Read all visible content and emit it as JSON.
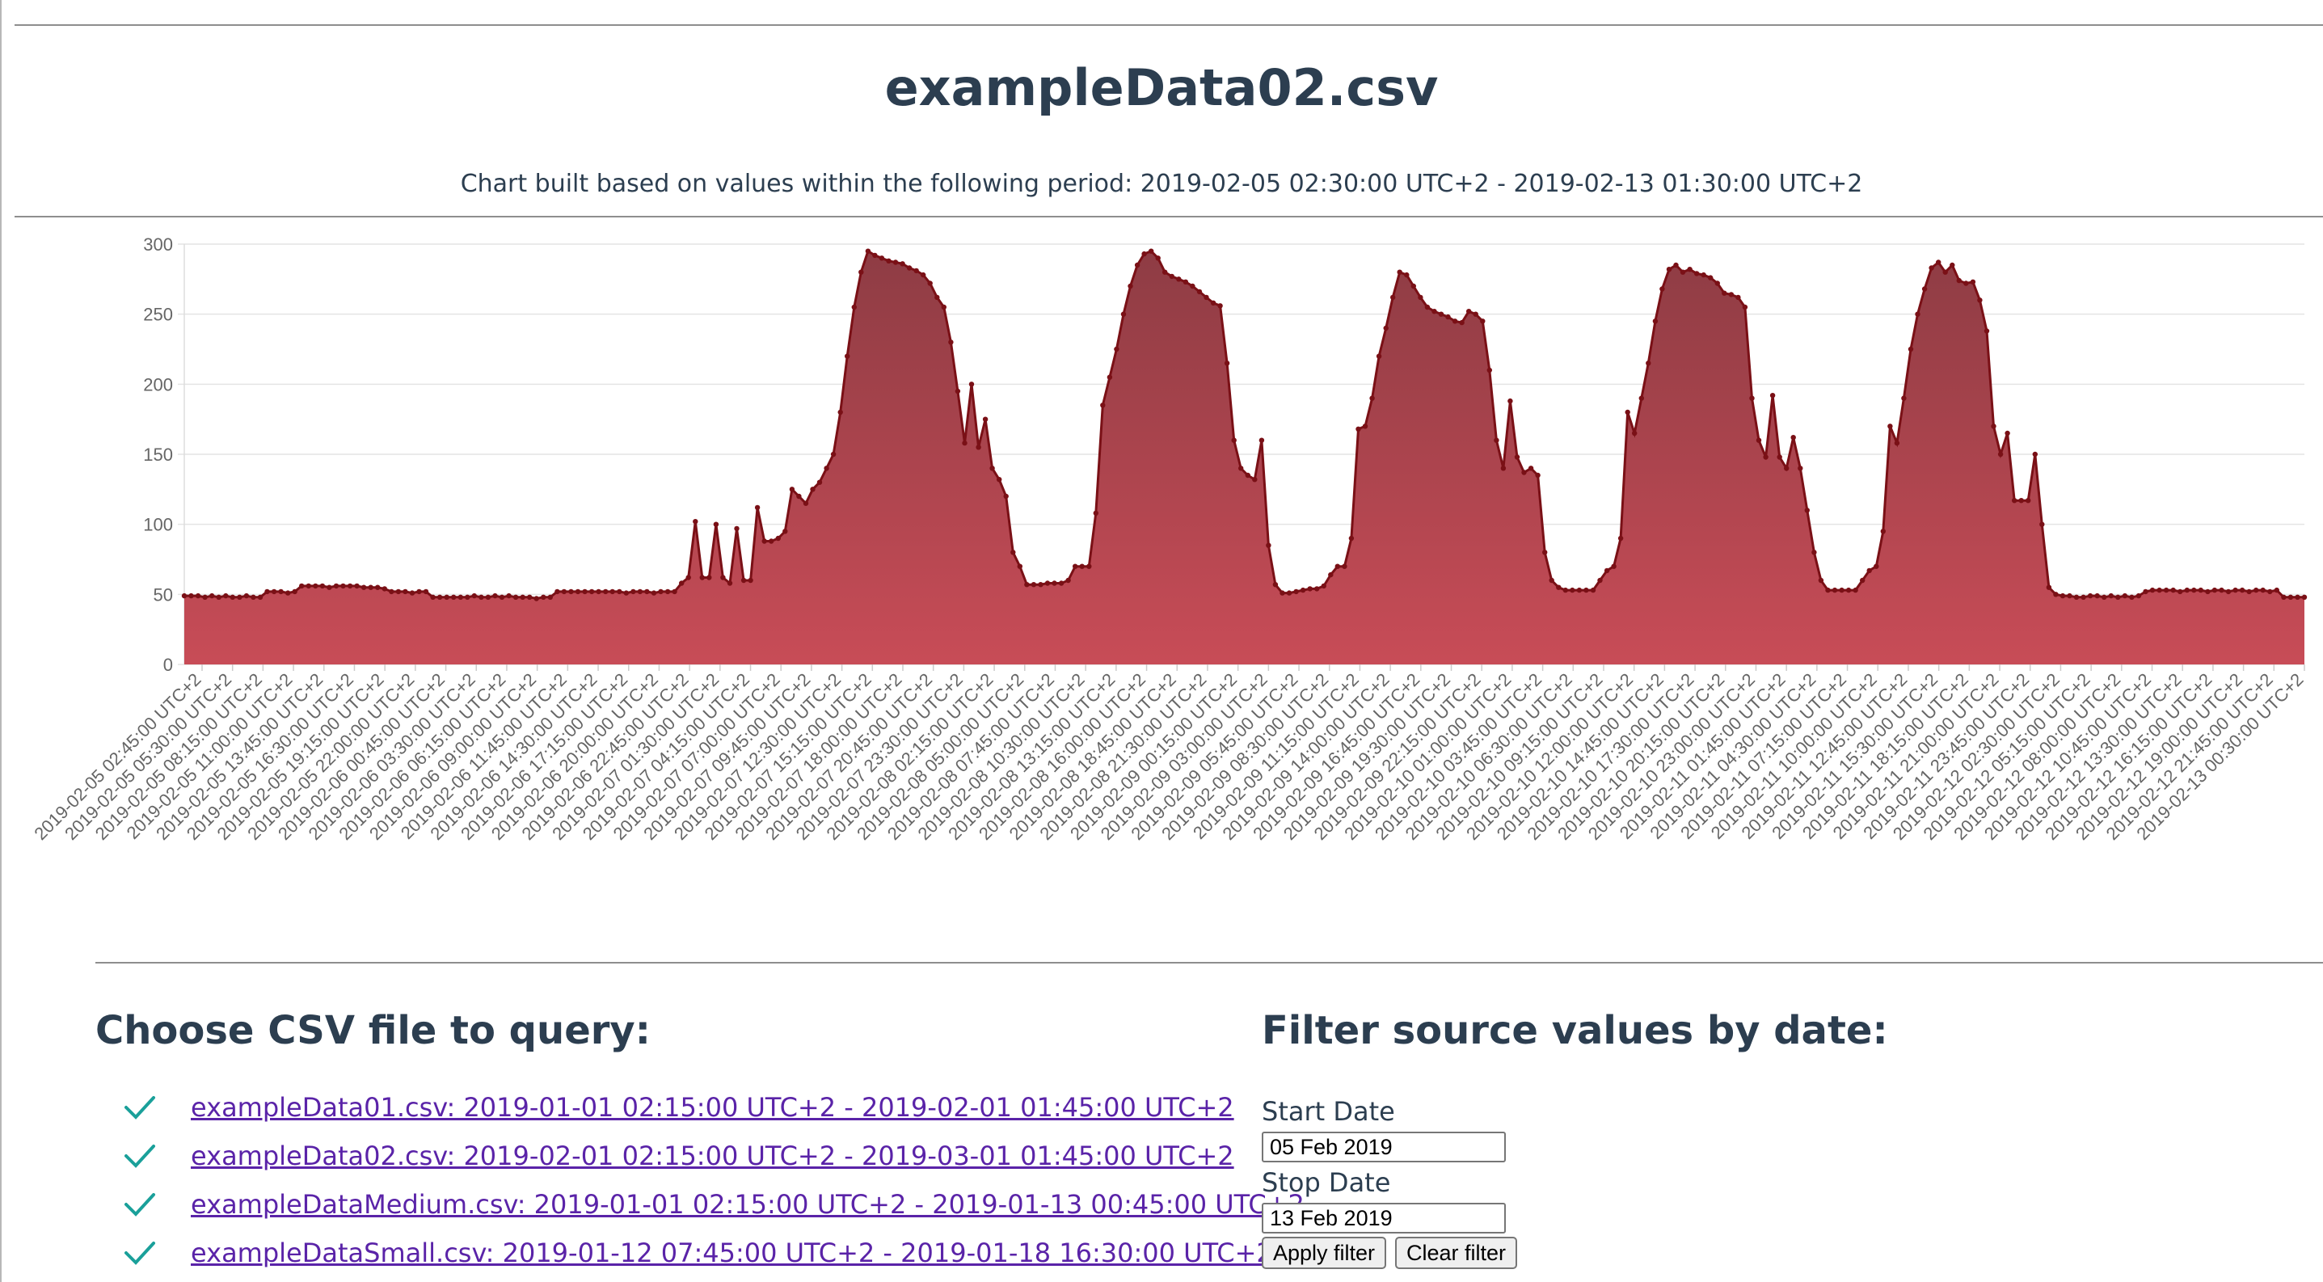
{
  "page": {
    "title": "exampleData02.csv",
    "period_text": "Chart built based on values within the following period: 2019-02-05 02:30:00 UTC+2 - 2019-02-13 01:30:00 UTC+2"
  },
  "chart_data": {
    "type": "area",
    "ylim": [
      0,
      300
    ],
    "y_ticks": [
      0,
      50,
      100,
      150,
      200,
      250,
      300
    ],
    "grid": true,
    "legend": "none",
    "fill_top_color": "#8e3c44",
    "fill_bottom_color": "#c84c57",
    "line_color": "#7a1016",
    "x_tick_labels": [
      "2019-02-05 02:45:00 UTC+2",
      "2019-02-05 05:30:00 UTC+2",
      "2019-02-05 08:15:00 UTC+2",
      "2019-02-05 11:00:00 UTC+2",
      "2019-02-05 13:45:00 UTC+2",
      "2019-02-05 16:30:00 UTC+2",
      "2019-02-05 19:15:00 UTC+2",
      "2019-02-05 22:00:00 UTC+2",
      "2019-02-06 00:45:00 UTC+2",
      "2019-02-06 03:30:00 UTC+2",
      "2019-02-06 06:15:00 UTC+2",
      "2019-02-06 09:00:00 UTC+2",
      "2019-02-06 11:45:00 UTC+2",
      "2019-02-06 14:30:00 UTC+2",
      "2019-02-06 17:15:00 UTC+2",
      "2019-02-06 20:00:00 UTC+2",
      "2019-02-06 22:45:00 UTC+2",
      "2019-02-07 01:30:00 UTC+2",
      "2019-02-07 04:15:00 UTC+2",
      "2019-02-07 07:00:00 UTC+2",
      "2019-02-07 09:45:00 UTC+2",
      "2019-02-07 12:30:00 UTC+2",
      "2019-02-07 15:15:00 UTC+2",
      "2019-02-07 18:00:00 UTC+2",
      "2019-02-07 20:45:00 UTC+2",
      "2019-02-07 23:30:00 UTC+2",
      "2019-02-08 02:15:00 UTC+2",
      "2019-02-08 05:00:00 UTC+2",
      "2019-02-08 07:45:00 UTC+2",
      "2019-02-08 10:30:00 UTC+2",
      "2019-02-08 13:15:00 UTC+2",
      "2019-02-08 16:00:00 UTC+2",
      "2019-02-08 18:45:00 UTC+2",
      "2019-02-08 21:30:00 UTC+2",
      "2019-02-09 00:15:00 UTC+2",
      "2019-02-09 03:00:00 UTC+2",
      "2019-02-09 05:45:00 UTC+2",
      "2019-02-09 08:30:00 UTC+2",
      "2019-02-09 11:15:00 UTC+2",
      "2019-02-09 14:00:00 UTC+2",
      "2019-02-09 16:45:00 UTC+2",
      "2019-02-09 19:30:00 UTC+2",
      "2019-02-09 22:15:00 UTC+2",
      "2019-02-10 01:00:00 UTC+2",
      "2019-02-10 03:45:00 UTC+2",
      "2019-02-10 06:30:00 UTC+2",
      "2019-02-10 09:15:00 UTC+2",
      "2019-02-10 12:00:00 UTC+2",
      "2019-02-10 14:45:00 UTC+2",
      "2019-02-10 17:30:00 UTC+2",
      "2019-02-10 20:15:00 UTC+2",
      "2019-02-10 23:00:00 UTC+2",
      "2019-02-11 01:45:00 UTC+2",
      "2019-02-11 04:30:00 UTC+2",
      "2019-02-11 07:15:00 UTC+2",
      "2019-02-11 10:00:00 UTC+2",
      "2019-02-11 12:45:00 UTC+2",
      "2019-02-11 15:30:00 UTC+2",
      "2019-02-11 18:15:00 UTC+2",
      "2019-02-11 21:00:00 UTC+2",
      "2019-02-11 23:45:00 UTC+2",
      "2019-02-12 02:30:00 UTC+2",
      "2019-02-12 05:15:00 UTC+2",
      "2019-02-12 08:00:00 UTC+2",
      "2019-02-12 10:45:00 UTC+2",
      "2019-02-12 13:30:00 UTC+2",
      "2019-02-12 16:15:00 UTC+2",
      "2019-02-12 19:00:00 UTC+2",
      "2019-02-12 21:45:00 UTC+2",
      "2019-02-13 00:30:00 UTC+2"
    ],
    "series": [
      {
        "x_start": "2019-02-05 02:45:00 UTC+2",
        "x_end": "2019-02-13 01:30:00 UTC+2",
        "x_step_minutes": 55,
        "values": [
          49,
          49,
          49,
          48,
          49,
          48,
          49,
          48,
          48,
          49,
          48,
          48,
          52,
          52,
          52,
          51,
          52,
          56,
          56,
          56,
          56,
          55,
          56,
          56,
          56,
          56,
          55,
          55,
          55,
          54,
          52,
          52,
          52,
          51,
          52,
          52,
          48,
          48,
          48,
          48,
          48,
          48,
          49,
          48,
          48,
          49,
          48,
          49,
          48,
          48,
          48,
          47,
          48,
          48,
          52,
          52,
          52,
          52,
          52,
          52,
          52,
          52,
          52,
          52,
          51,
          52,
          52,
          52,
          51,
          52,
          52,
          52,
          58,
          62,
          102,
          62,
          62,
          100,
          62,
          58,
          97,
          60,
          60,
          112,
          88,
          88,
          90,
          95,
          125,
          120,
          115,
          125,
          130,
          140,
          150,
          180,
          220,
          255,
          280,
          295,
          292,
          290,
          288,
          287,
          286,
          283,
          281,
          278,
          272,
          262,
          255,
          230,
          195,
          158,
          200,
          155,
          175,
          140,
          132,
          120,
          80,
          70,
          57,
          57,
          57,
          58,
          58,
          58,
          60,
          70,
          70,
          70,
          108,
          185,
          205,
          225,
          250,
          270,
          285,
          293,
          295,
          290,
          280,
          277,
          275,
          273,
          270,
          266,
          262,
          258,
          256,
          215,
          160,
          140,
          135,
          132,
          160,
          85,
          57,
          51,
          51,
          52,
          53,
          54,
          54,
          56,
          64,
          70,
          70,
          90,
          168,
          170,
          190,
          220,
          240,
          262,
          280,
          278,
          270,
          262,
          255,
          252,
          250,
          248,
          245,
          244,
          252,
          250,
          245,
          210,
          160,
          140,
          188,
          148,
          137,
          140,
          135,
          80,
          60,
          55,
          53,
          53,
          53,
          53,
          53,
          60,
          67,
          70,
          90,
          180,
          165,
          190,
          215,
          245,
          268,
          282,
          285,
          280,
          282,
          279,
          278,
          276,
          272,
          265,
          264,
          262,
          255,
          190,
          160,
          148,
          192,
          148,
          140,
          162,
          140,
          110,
          80,
          60,
          53,
          53,
          53,
          53,
          53,
          60,
          67,
          70,
          95,
          170,
          158,
          190,
          225,
          250,
          268,
          283,
          287,
          280,
          285,
          274,
          272,
          273,
          260,
          238,
          170,
          150,
          165,
          117,
          117,
          117,
          150,
          100,
          55,
          50,
          49,
          49,
          48,
          48,
          49,
          49,
          48,
          49,
          48,
          49,
          48,
          49,
          52,
          53,
          53,
          53,
          53,
          52,
          53,
          53,
          53,
          52,
          53,
          53,
          52,
          53,
          53,
          52,
          53,
          53,
          52,
          53,
          48,
          48,
          48,
          48
        ]
      }
    ]
  },
  "files": {
    "heading": "Choose CSV file to query:",
    "items": [
      {
        "label": "exampleData01.csv: 2019-01-01 02:15:00 UTC+2 - 2019-02-01 01:45:00 UTC+2"
      },
      {
        "label": "exampleData02.csv: 2019-02-01 02:15:00 UTC+2 - 2019-03-01 01:45:00 UTC+2"
      },
      {
        "label": "exampleDataMedium.csv: 2019-01-01 02:15:00 UTC+2 - 2019-01-13 00:45:00 UTC+2"
      },
      {
        "label": "exampleDataSmall.csv: 2019-01-12 07:45:00 UTC+2 - 2019-01-18 16:30:00 UTC+2"
      }
    ],
    "check_icon": "check-icon",
    "check_color": "#1aa09a",
    "link_color": "#5a23a8"
  },
  "filter": {
    "heading": "Filter source values by date:",
    "start_label": "Start Date",
    "start_value": "05 Feb 2019",
    "stop_label": "Stop Date",
    "stop_value": "13 Feb 2019",
    "apply_label": "Apply filter",
    "clear_label": "Clear filter"
  }
}
